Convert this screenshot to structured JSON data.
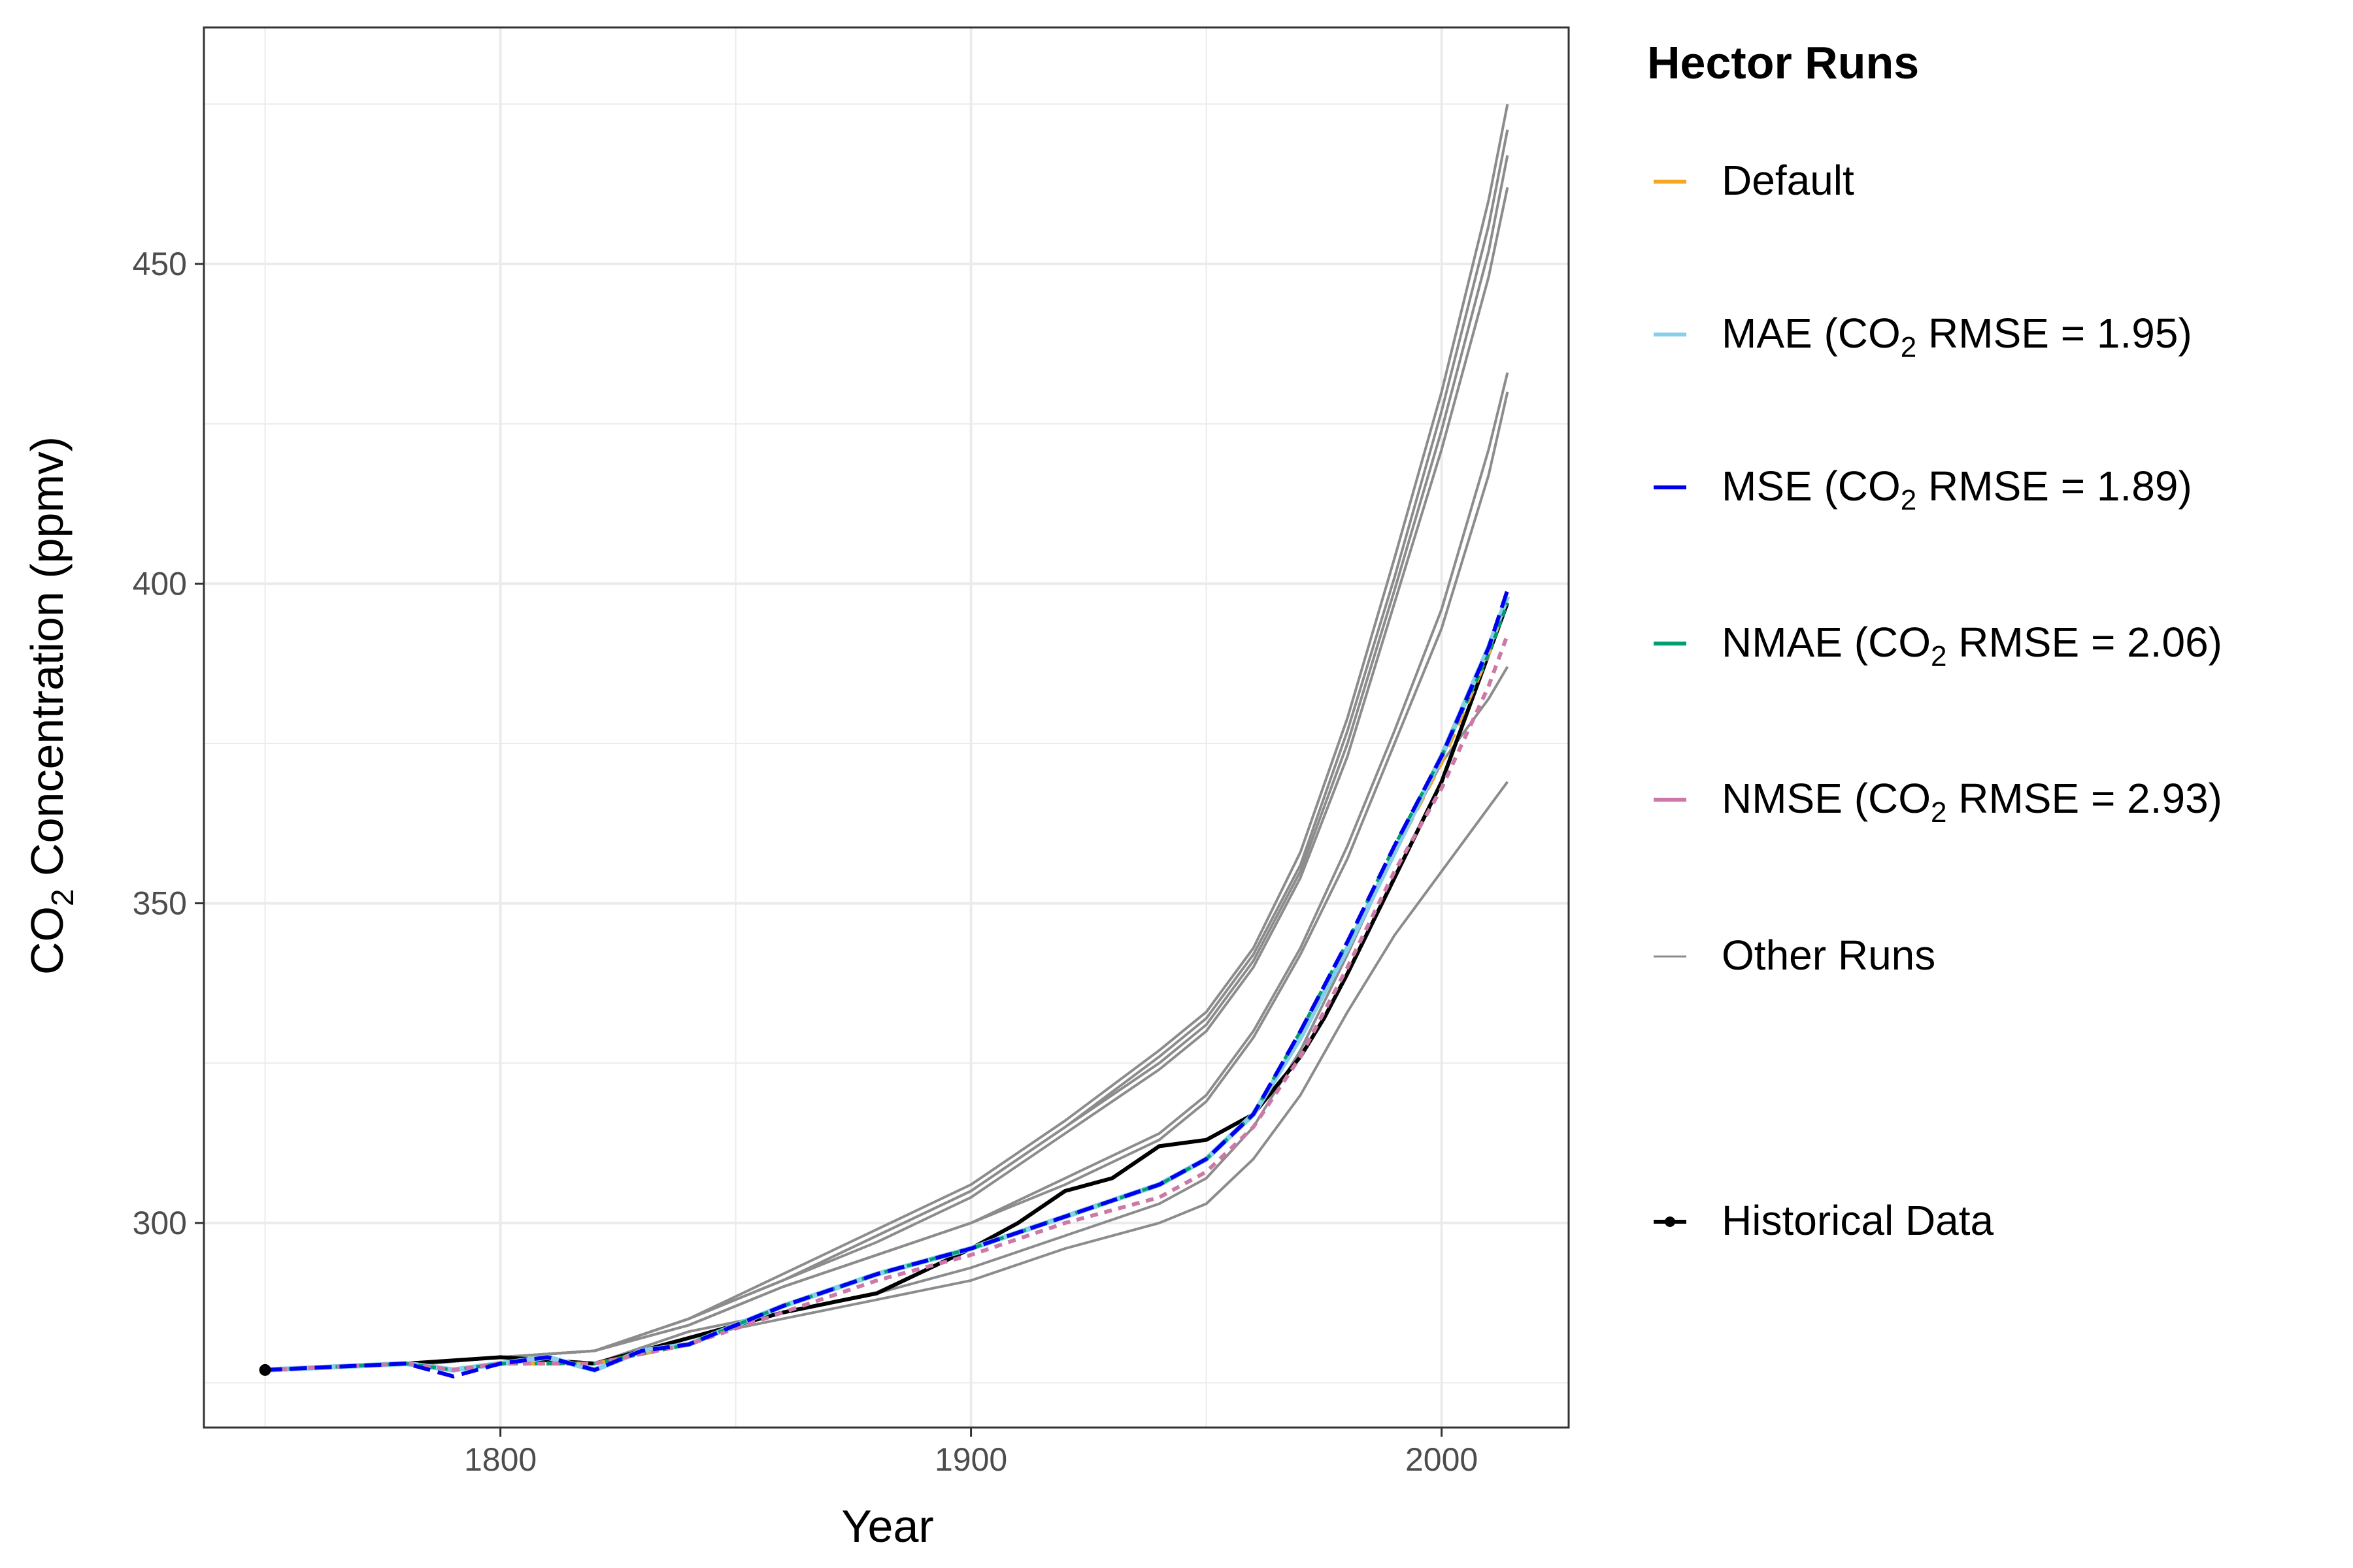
{
  "chart_data": {
    "type": "line",
    "title": "",
    "xlabel": "Year",
    "ylabel": {
      "prefix": "CO",
      "sub": "2",
      "suffix": " Concentration (ppmv)"
    },
    "xlim": [
      1737,
      2027
    ],
    "ylim": [
      268,
      487
    ],
    "xticks": [
      1800,
      1900,
      2000
    ],
    "yticks": [
      300,
      350,
      400,
      450
    ],
    "legend": {
      "title": "Hector Runs",
      "placement": "right",
      "entries": [
        {
          "key": "default",
          "prefix": "Default",
          "sub": "",
          "suffix": "",
          "color": "#F5A623",
          "dash": "",
          "width": 6,
          "point": false
        },
        {
          "key": "mae",
          "prefix": "MAE (CO",
          "sub": "2",
          "suffix": " RMSE = 1.95)",
          "color": "#87CEEB",
          "dash": "",
          "width": 6,
          "point": false
        },
        {
          "key": "mse",
          "prefix": "MSE (CO",
          "sub": "2",
          "suffix": " RMSE = 1.89)",
          "color": "#0000EE",
          "dash": "",
          "width": 6,
          "point": false
        },
        {
          "key": "nmae",
          "prefix": "NMAE (CO",
          "sub": "2",
          "suffix": " RMSE = 2.06)",
          "color": "#009E73",
          "dash": "",
          "width": 6,
          "point": false
        },
        {
          "key": "nmse",
          "prefix": "NMSE (CO",
          "sub": "2",
          "suffix": " RMSE = 2.93)",
          "color": "#CC79A7",
          "dash": "",
          "width": 6,
          "point": false
        },
        {
          "key": "other",
          "prefix": "Other Runs",
          "sub": "",
          "suffix": "",
          "color": "#8C8C8C",
          "dash": "",
          "width": 3,
          "point": false
        },
        {
          "key": "historical",
          "prefix": "Historical Data",
          "sub": "",
          "suffix": "",
          "color": "#000000",
          "dash": "",
          "width": 6,
          "point": true
        }
      ]
    },
    "series": [
      {
        "name": "Other Runs",
        "color": "#8C8C8C",
        "width": 4,
        "dash": "",
        "x": [
          1750,
          1785,
          1800,
          1820,
          1840,
          1860,
          1880,
          1900,
          1920,
          1940,
          1950,
          1960,
          1970,
          1980,
          1990,
          2000,
          2010,
          2014
        ],
        "y": [
          277,
          278,
          279,
          280,
          285,
          292,
          299,
          306,
          316,
          327,
          333,
          343,
          358,
          379,
          404,
          430,
          460,
          475
        ]
      },
      {
        "name": "Other Runs",
        "color": "#8C8C8C",
        "width": 4,
        "dash": "",
        "x": [
          1750,
          1785,
          1800,
          1820,
          1840,
          1860,
          1880,
          1900,
          1920,
          1940,
          1950,
          1960,
          1970,
          1980,
          1990,
          2000,
          2010,
          2014
        ],
        "y": [
          277,
          278,
          279,
          280,
          285,
          291,
          298,
          305,
          315,
          326,
          332,
          342,
          356,
          377,
          401,
          427,
          456,
          471
        ]
      },
      {
        "name": "Other Runs",
        "color": "#8C8C8C",
        "width": 4,
        "dash": "",
        "x": [
          1750,
          1785,
          1800,
          1820,
          1840,
          1860,
          1880,
          1900,
          1920,
          1940,
          1950,
          1960,
          1970,
          1980,
          1990,
          2000,
          2010,
          2014
        ],
        "y": [
          277,
          278,
          279,
          280,
          285,
          291,
          298,
          305,
          315,
          325,
          331,
          341,
          355,
          375,
          399,
          424,
          452,
          467
        ]
      },
      {
        "name": "Other Runs",
        "color": "#8C8C8C",
        "width": 4,
        "dash": "",
        "x": [
          1750,
          1785,
          1800,
          1820,
          1840,
          1860,
          1880,
          1900,
          1920,
          1940,
          1950,
          1960,
          1970,
          1980,
          1990,
          2000,
          2010,
          2014
        ],
        "y": [
          277,
          278,
          279,
          280,
          285,
          291,
          297,
          304,
          314,
          324,
          330,
          340,
          354,
          373,
          397,
          421,
          448,
          462
        ]
      },
      {
        "name": "Other Runs",
        "color": "#8C8C8C",
        "width": 4,
        "dash": "",
        "x": [
          1750,
          1785,
          1800,
          1820,
          1840,
          1860,
          1880,
          1900,
          1920,
          1940,
          1950,
          1960,
          1970,
          1980,
          1990,
          2000,
          2010,
          2014
        ],
        "y": [
          277,
          278,
          279,
          280,
          284,
          290,
          295,
          300,
          307,
          314,
          320,
          330,
          343,
          359,
          377,
          396,
          421,
          433
        ]
      },
      {
        "name": "Other Runs",
        "color": "#8C8C8C",
        "width": 4,
        "dash": "",
        "x": [
          1750,
          1785,
          1800,
          1820,
          1840,
          1860,
          1880,
          1900,
          1920,
          1940,
          1950,
          1960,
          1970,
          1980,
          1990,
          2000,
          2010,
          2014
        ],
        "y": [
          277,
          278,
          279,
          280,
          284,
          290,
          295,
          300,
          306,
          313,
          319,
          329,
          342,
          357,
          375,
          393,
          417,
          430
        ]
      },
      {
        "name": "Other Runs",
        "color": "#8C8C8C",
        "width": 4,
        "dash": "",
        "x": [
          1750,
          1785,
          1800,
          1820,
          1840,
          1860,
          1880,
          1900,
          1920,
          1940,
          1950,
          1960,
          1970,
          1980,
          1990,
          2000,
          2010,
          2014
        ],
        "y": [
          277,
          278,
          279,
          278,
          283,
          286,
          289,
          293,
          298,
          303,
          307,
          315,
          327,
          342,
          358,
          372,
          382,
          387
        ]
      },
      {
        "name": "Other Runs",
        "color": "#8C8C8C",
        "width": 4,
        "dash": "",
        "x": [
          1750,
          1785,
          1800,
          1820,
          1840,
          1860,
          1880,
          1900,
          1920,
          1940,
          1950,
          1960,
          1970,
          1980,
          1990,
          2000,
          2010,
          2014
        ],
        "y": [
          277,
          278,
          279,
          278,
          282,
          285,
          288,
          291,
          296,
          300,
          303,
          310,
          320,
          333,
          345,
          355,
          365,
          369
        ]
      },
      {
        "name": "Historical Data",
        "color": "#000000",
        "width": 6,
        "dash": "",
        "x": [
          1750,
          1780,
          1800,
          1820,
          1840,
          1860,
          1880,
          1900,
          1910,
          1920,
          1930,
          1940,
          1950,
          1955,
          1960,
          1970,
          1975,
          1980,
          1990,
          2000,
          2010,
          2014
        ],
        "y": [
          277,
          278,
          279,
          278,
          282,
          286,
          289,
          296,
          300,
          305,
          307,
          312,
          313,
          315,
          317,
          326,
          332,
          339,
          354,
          369,
          389,
          397
        ]
      },
      {
        "name": "Default",
        "color": "#F5A623",
        "width": 6,
        "dash": "22 14",
        "x": [
          1750,
          1780,
          1790,
          1800,
          1820,
          1840,
          1860,
          1880,
          1900,
          1920,
          1940,
          1950,
          1960,
          1970,
          1980,
          1990,
          2000,
          2010,
          2014
        ],
        "y": [
          277,
          278,
          277,
          278,
          278,
          281,
          287,
          292,
          296,
          301,
          306,
          310,
          317,
          329,
          343,
          358,
          372,
          389,
          398
        ]
      },
      {
        "name": "MAE (CO2 RMSE = 1.95)",
        "color": "#87CEEB",
        "width": 8,
        "dash": "",
        "x": [
          1750,
          1780,
          1790,
          1800,
          1810,
          1820,
          1830,
          1840,
          1860,
          1880,
          1900,
          1920,
          1940,
          1950,
          1960,
          1970,
          1980,
          1990,
          2000,
          2010,
          2014
        ],
        "y": [
          277,
          278,
          277,
          278,
          279,
          277,
          280,
          281,
          287,
          292,
          296,
          301,
          306,
          310,
          317,
          329,
          343,
          358,
          373,
          390,
          398
        ]
      },
      {
        "name": "NMAE (CO2 RMSE = 2.06)",
        "color": "#009E73",
        "width": 5,
        "dash": "10 8",
        "x": [
          1750,
          1780,
          1790,
          1800,
          1820,
          1840,
          1860,
          1880,
          1900,
          1920,
          1940,
          1950,
          1960,
          1970,
          1980,
          1990,
          2000,
          2010,
          2014
        ],
        "y": [
          277,
          278,
          277,
          278,
          278,
          281,
          287,
          292,
          296,
          301,
          306,
          310,
          317,
          330,
          344,
          359,
          373,
          389,
          397
        ]
      },
      {
        "name": "NMSE (CO2 RMSE = 2.93)",
        "color": "#CC79A7",
        "width": 6,
        "dash": "12 10",
        "x": [
          1750,
          1780,
          1790,
          1800,
          1820,
          1840,
          1860,
          1880,
          1900,
          1920,
          1940,
          1950,
          1960,
          1970,
          1980,
          1990,
          2000,
          2010,
          2014
        ],
        "y": [
          277,
          278,
          277,
          278,
          278,
          281,
          286,
          291,
          295,
          300,
          304,
          308,
          315,
          326,
          340,
          355,
          368,
          384,
          392
        ]
      },
      {
        "name": "MSE (CO2 RMSE = 1.89)",
        "color": "#0000EE",
        "width": 6,
        "dash": "26 12",
        "x": [
          1750,
          1780,
          1790,
          1800,
          1810,
          1820,
          1830,
          1840,
          1860,
          1880,
          1900,
          1920,
          1940,
          1950,
          1960,
          1970,
          1980,
          1990,
          2000,
          2010,
          2014
        ],
        "y": [
          277,
          278,
          276,
          278,
          279,
          277,
          280,
          281,
          287,
          292,
          296,
          301,
          306,
          310,
          317,
          330,
          344,
          359,
          373,
          390,
          399
        ]
      }
    ],
    "historical_point": {
      "x": 1750,
      "y": 277
    }
  }
}
